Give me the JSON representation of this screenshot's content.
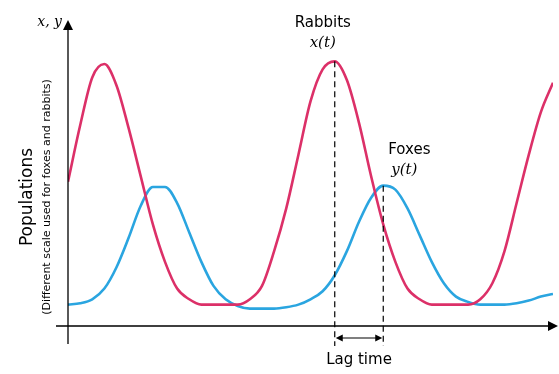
{
  "chart_data": {
    "type": "line",
    "axis_label": "x, y",
    "y_label": "Populations",
    "y_sublabel": "(Different scale used for foxes and rabbits)",
    "x": [
      0,
      2.5,
      5,
      7.5,
      10,
      12.5,
      15,
      17.5,
      20,
      22.5,
      25,
      27.5,
      30,
      32.5,
      35,
      37.5,
      40,
      42.5,
      45,
      47.5,
      50,
      52.5,
      55,
      57.5,
      60,
      62.5,
      65,
      67.5,
      70,
      72.5,
      75,
      77.5,
      80,
      82.5,
      85,
      87.5,
      90,
      92.5,
      95,
      97.5,
      100
    ],
    "series": [
      {
        "name": "Rabbits",
        "symbol": "x(t)",
        "color": "#dc3068",
        "values": [
          54,
          75,
          93,
          98,
          90,
          74,
          56,
          38,
          24,
          14,
          10,
          8,
          8,
          8,
          8,
          10,
          15,
          28,
          44,
          64,
          84,
          96,
          99,
          92,
          76,
          56,
          38,
          24,
          14,
          10,
          8,
          8,
          8,
          8,
          10,
          16,
          28,
          46,
          64,
          80,
          91
        ]
      },
      {
        "name": "Foxes",
        "symbol": "y(t)",
        "color": "#2aa5e0",
        "values": [
          8,
          8.5,
          10,
          14,
          22,
          33,
          45,
          52,
          52,
          46,
          35,
          24,
          15,
          10,
          7.5,
          6.5,
          6.5,
          6.5,
          7,
          8,
          10,
          13,
          19,
          28,
          39,
          48,
          52.5,
          51,
          44,
          34,
          24,
          16,
          11,
          9,
          8,
          8,
          8,
          8.5,
          9.5,
          11,
          12
        ]
      }
    ],
    "xlim": [
      0,
      100
    ],
    "ylim": [
      0,
      104
    ],
    "tick_labels": false,
    "grid": false,
    "lag": {
      "label": "Lag time",
      "from": 55,
      "to": 65
    }
  }
}
